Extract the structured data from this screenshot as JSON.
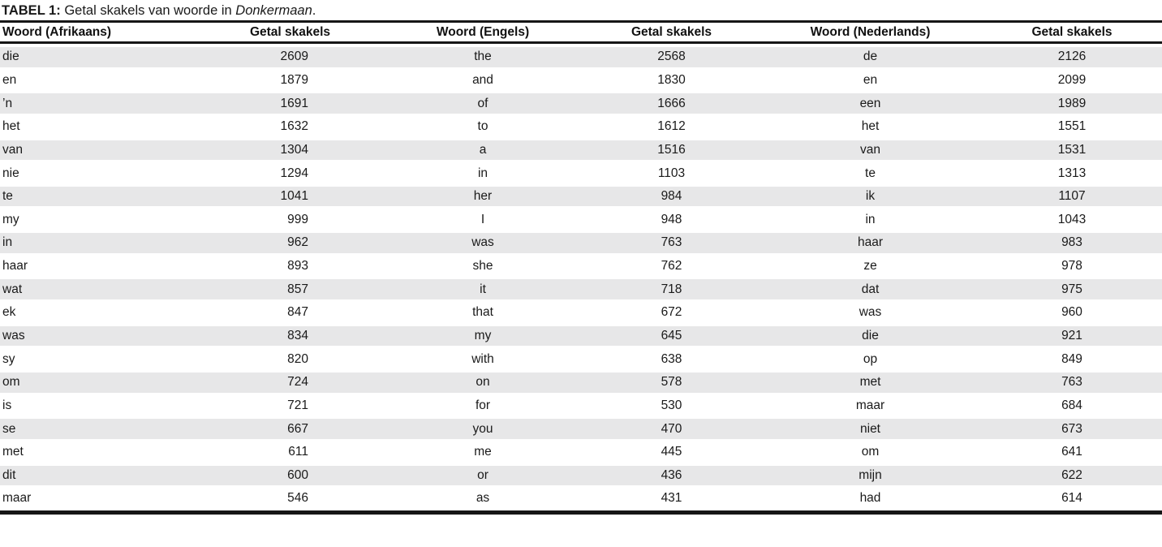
{
  "caption": {
    "label": "TABEL 1:",
    "text": "Getal skakels van woorde in",
    "work_italic": "Donkermaan",
    "suffix": "."
  },
  "table": {
    "headers": [
      "Woord (Afrikaans)",
      "Getal skakels",
      "Woord (Engels)",
      "Getal skakels",
      "Woord (Nederlands)",
      "Getal skakels"
    ],
    "rows": [
      [
        "die",
        "2609",
        "the",
        "2568",
        "de",
        "2126"
      ],
      [
        "en",
        "1879",
        "and",
        "1830",
        "en",
        "2099"
      ],
      [
        "’n",
        "1691",
        "of",
        "1666",
        "een",
        "1989"
      ],
      [
        "het",
        "1632",
        "to",
        "1612",
        "het",
        "1551"
      ],
      [
        "van",
        "1304",
        "a",
        "1516",
        "van",
        "1531"
      ],
      [
        "nie",
        "1294",
        "in",
        "1103",
        "te",
        "1313"
      ],
      [
        "te",
        "1041",
        "her",
        "984",
        "ik",
        "1107"
      ],
      [
        "my",
        "999",
        "I",
        "948",
        "in",
        "1043"
      ],
      [
        "in",
        "962",
        "was",
        "763",
        "haar",
        "983"
      ],
      [
        "haar",
        "893",
        "she",
        "762",
        "ze",
        "978"
      ],
      [
        "wat",
        "857",
        "it",
        "718",
        "dat",
        "975"
      ],
      [
        "ek",
        "847",
        "that",
        "672",
        "was",
        "960"
      ],
      [
        "was",
        "834",
        "my",
        "645",
        "die",
        "921"
      ],
      [
        "sy",
        "820",
        "with",
        "638",
        "op",
        "849"
      ],
      [
        "om",
        "724",
        "on",
        "578",
        "met",
        "763"
      ],
      [
        "is",
        "721",
        "for",
        "530",
        "maar",
        "684"
      ],
      [
        "se",
        "667",
        "you",
        "470",
        "niet",
        "673"
      ],
      [
        "met",
        "611",
        "me",
        "445",
        "om",
        "641"
      ],
      [
        "dit",
        "600",
        "or",
        "436",
        "mijn",
        "622"
      ],
      [
        "maar",
        "546",
        "as",
        "431",
        "had",
        "614"
      ]
    ]
  },
  "colors": {
    "text": "#1a1a1a",
    "rule": "#161616",
    "stripe": "#e7e7e8"
  }
}
